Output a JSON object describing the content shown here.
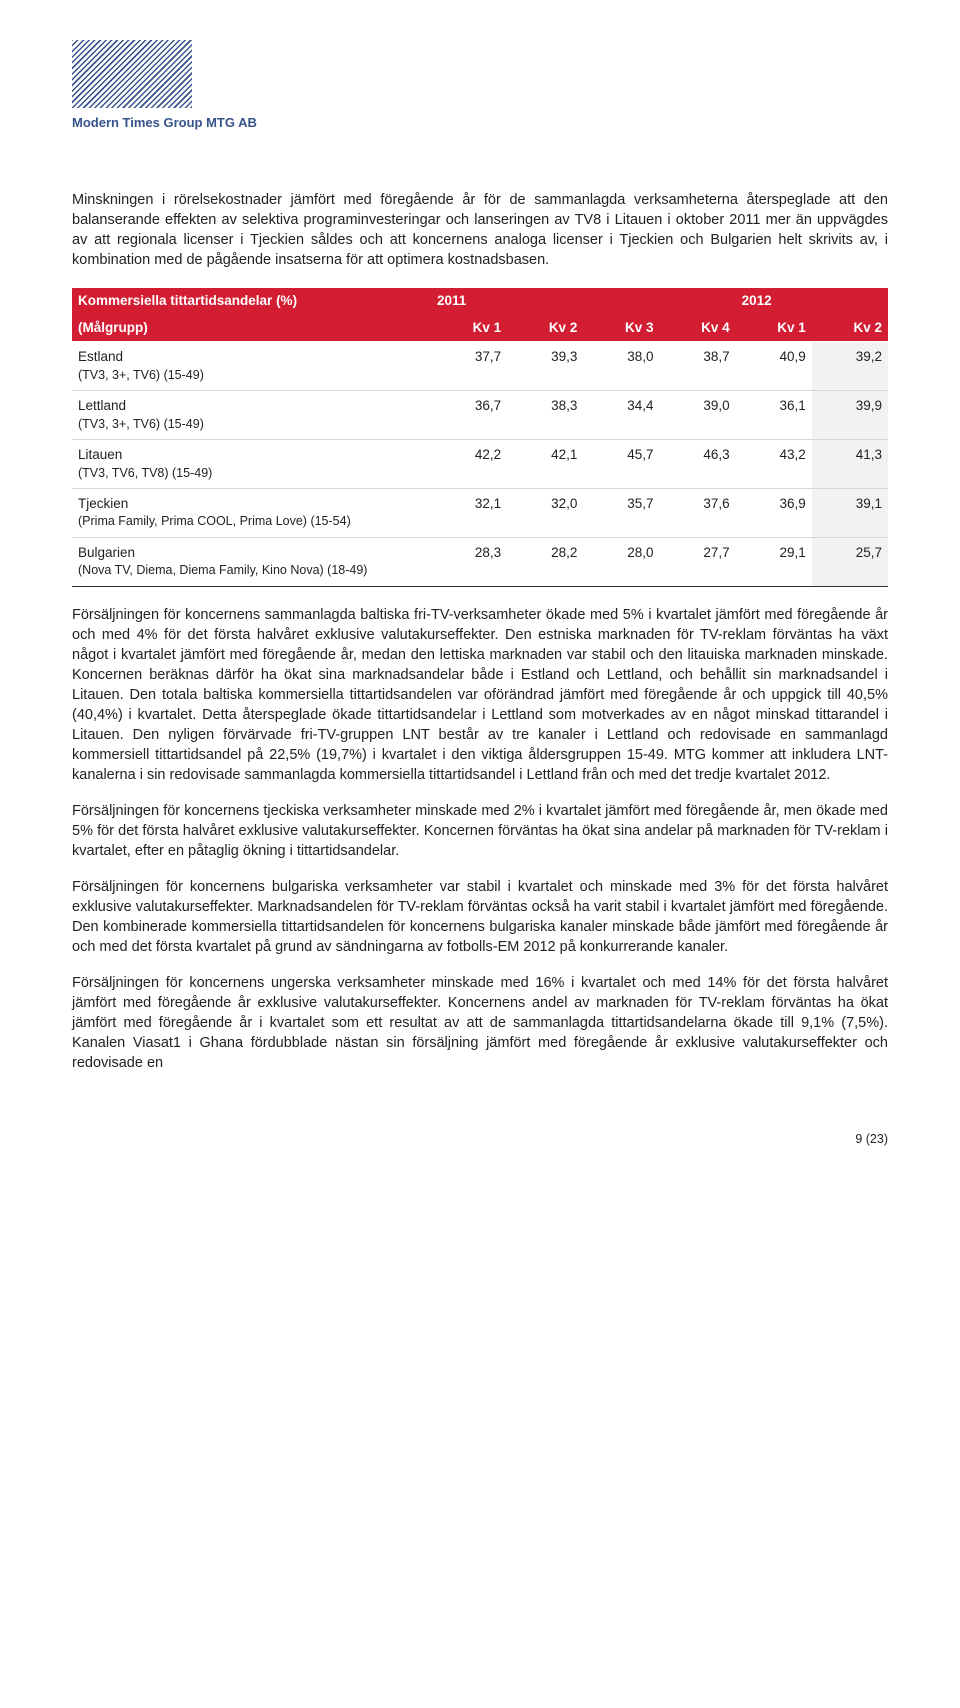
{
  "header": {
    "company": "Modern Times Group MTG AB"
  },
  "intro_para": "Minskningen i rörelsekostnader jämfört med föregående år för de sammanlagda verksamheterna återspeglade att den balanserande effekten av selektiva programinvesteringar och lanseringen av TV8 i Litauen i oktober 2011 mer än uppvägdes av att regionala licenser i Tjeckien såldes och att koncernens analoga licenser i Tjeckien och Bulgarien helt skrivits av, i kombination med de pågående insatserna för att optimera kostnadsbasen.",
  "table": {
    "header_title": "Kommersiella tittartidsandelar (%)",
    "header_sub": "(Målgrupp)",
    "year1": "2011",
    "year2": "2012",
    "cols": {
      "c1": "Kv 1",
      "c2": "Kv 2",
      "c3": "Kv 3",
      "c4": "Kv 4",
      "c5": "Kv 1",
      "c6": "Kv 2"
    },
    "rows": [
      {
        "name": "Estland",
        "sub": "(TV3, 3+, TV6) (15-49)",
        "v": [
          "37,7",
          "39,3",
          "38,0",
          "38,7",
          "40,9",
          "39,2"
        ]
      },
      {
        "name": "Lettland",
        "sub": "(TV3, 3+, TV6) (15-49)",
        "v": [
          "36,7",
          "38,3",
          "34,4",
          "39,0",
          "36,1",
          "39,9"
        ]
      },
      {
        "name": "Litauen",
        "sub": "(TV3, TV6, TV8) (15-49)",
        "v": [
          "42,2",
          "42,1",
          "45,7",
          "46,3",
          "43,2",
          "41,3"
        ]
      },
      {
        "name": "Tjeckien",
        "sub": "(Prima Family, Prima COOL, Prima Love) (15-54)",
        "v": [
          "32,1",
          "32,0",
          "35,7",
          "37,6",
          "36,9",
          "39,1"
        ]
      },
      {
        "name": "Bulgarien",
        "sub": "(Nova TV, Diema, Diema Family, Kino Nova) (18-49)",
        "v": [
          "28,3",
          "28,2",
          "28,0",
          "27,7",
          "29,1",
          "25,7"
        ]
      }
    ]
  },
  "paras": {
    "p1": "Försäljningen för koncernens sammanlagda baltiska fri-TV-verksamheter ökade med 5% i kvartalet jämfört med föregående år och med 4% för det första halvåret exklusive valutakurseffekter. Den estniska marknaden för TV-reklam förväntas ha växt något i kvartalet jämfört med föregående år, medan den lettiska marknaden var stabil och den litauiska marknaden minskade. Koncernen beräknas därför ha ökat sina marknadsandelar både i Estland och Lettland, och behållit sin marknadsandel i Litauen. Den totala baltiska kommersiella tittartidsandelen var oförändrad jämfört med föregående år och uppgick till 40,5% (40,4%) i kvartalet. Detta återspeglade ökade tittartidsandelar i Lettland som motverkades av en något minskad tittarandel i Litauen. Den nyligen förvärvade fri-TV-gruppen LNT består av tre kanaler i Lettland och redovisade en sammanlagd kommersiell tittartidsandel på 22,5% (19,7%) i kvartalet i den viktiga åldersgruppen 15-49. MTG kommer att inkludera LNT-kanalerna i sin redovisade sammanlagda kommersiella tittartidsandel i Lettland från och med det tredje kvartalet 2012.",
    "p2": "Försäljningen för koncernens tjeckiska verksamheter minskade med 2% i kvartalet jämfört med föregående år, men ökade med 5% för det första halvåret exklusive valutakurseffekter. Koncernen förväntas ha ökat sina andelar på marknaden för TV-reklam i kvartalet, efter en påtaglig ökning i tittartidsandelar.",
    "p3": "Försäljningen för koncernens bulgariska verksamheter var stabil i kvartalet och minskade med 3% för det första halvåret exklusive valutakurseffekter. Marknadsandelen för TV-reklam förväntas också ha varit stabil i kvartalet jämfört med föregående. Den kombinerade kommersiella tittartidsandelen för koncernens bulgariska kanaler minskade både jämfört med föregående år och med det första kvartalet på grund av sändningarna av fotbolls-EM 2012 på konkurrerande kanaler.",
    "p4": "Försäljningen för koncernens ungerska verksamheter minskade med 16% i kvartalet och med 14% för det första halvåret jämfört med föregående år exklusive valutakurseffekter. Koncernens andel av marknaden för TV-reklam förväntas ha ökat jämfört med föregående år i kvartalet som ett resultat av att de sammanlagda tittartidsandelarna ökade till 9,1% (7,5%). Kanalen Viasat1 i Ghana fördubblade nästan sin försäljning jämfört med föregående år exklusive valutakurseffekter och redovisade en"
  },
  "footer": {
    "page": "9 (23)"
  }
}
